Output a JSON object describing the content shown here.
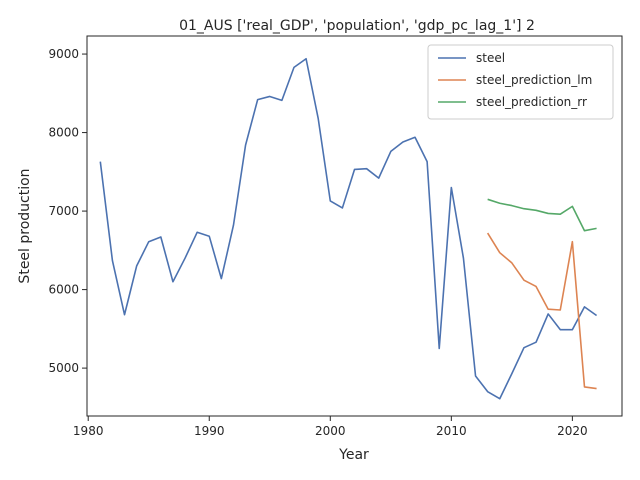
{
  "chart_data": {
    "type": "line",
    "title": "01_AUS ['real_GDP', 'population', 'gdp_pc_lag_1'] 2",
    "xlabel": "Year",
    "ylabel": "Steel production",
    "xlim": [
      1979.9,
      2024.1
    ],
    "ylim": [
      4390,
      9230
    ],
    "xticks": [
      1980,
      1990,
      2000,
      2010,
      2020
    ],
    "yticks": [
      5000,
      6000,
      7000,
      8000,
      9000
    ],
    "grid": false,
    "legend_position": "top-right",
    "series": [
      {
        "name": "steel",
        "color": "#4c72b0",
        "x": [
          1981,
          1982,
          1983,
          1984,
          1985,
          1986,
          1987,
          1988,
          1989,
          1990,
          1991,
          1992,
          1993,
          1994,
          1995,
          1996,
          1997,
          1998,
          1999,
          2000,
          2001,
          2002,
          2003,
          2004,
          2005,
          2006,
          2007,
          2008,
          2009,
          2010,
          2011,
          2012,
          2013,
          2014,
          2015,
          2016,
          2017,
          2018,
          2019,
          2020,
          2021,
          2022
        ],
        "values": [
          7630,
          6370,
          5680,
          6300,
          6610,
          6670,
          6100,
          6400,
          6730,
          6680,
          6140,
          6820,
          7840,
          8420,
          8460,
          8410,
          8830,
          8940,
          8180,
          7130,
          7040,
          7530,
          7540,
          7420,
          7760,
          7880,
          7940,
          7630,
          5250,
          7300,
          6400,
          4900,
          4700,
          4610,
          4930,
          5260,
          5330,
          5690,
          5490,
          5490,
          5780,
          5670
        ]
      },
      {
        "name": "steel_prediction_lm",
        "color": "#dd8452",
        "x": [
          2013,
          2014,
          2015,
          2016,
          2017,
          2018,
          2019,
          2020,
          2021,
          2022
        ],
        "values": [
          6720,
          6470,
          6340,
          6120,
          6040,
          5750,
          5740,
          6610,
          4760,
          4740
        ]
      },
      {
        "name": "steel_prediction_rr",
        "color": "#55a868",
        "x": [
          2013,
          2014,
          2015,
          2016,
          2017,
          2018,
          2019,
          2020,
          2021,
          2022
        ],
        "values": [
          7150,
          7100,
          7070,
          7030,
          7010,
          6970,
          6960,
          7060,
          6750,
          6780
        ]
      }
    ]
  }
}
